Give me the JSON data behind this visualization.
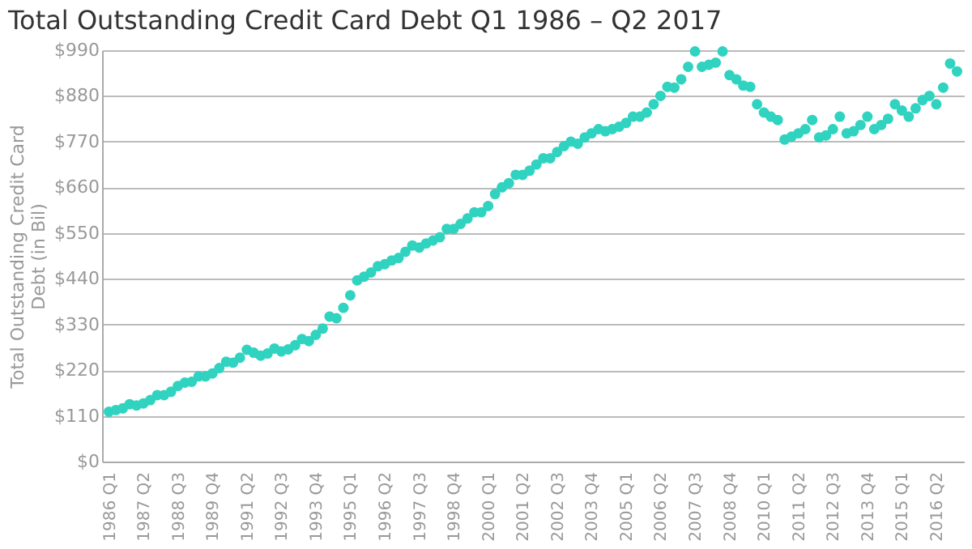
{
  "chart_data": {
    "type": "scatter",
    "title": "Total Outstanding Credit Card Debt Q1 1986 – Q2 2017",
    "ylabel": "Total Outstanding Credit Card Debt (in Bil)",
    "categories": [
      "1986 Q1",
      null,
      null,
      null,
      null,
      "1987 Q2",
      null,
      null,
      null,
      null,
      "1988 Q3",
      null,
      null,
      null,
      null,
      "1989 Q4",
      null,
      null,
      null,
      null,
      "1991 Q2",
      null,
      null,
      null,
      null,
      "1992 Q3",
      null,
      null,
      null,
      null,
      "1993 Q4",
      null,
      null,
      null,
      null,
      "1995 Q1",
      null,
      null,
      null,
      null,
      "1996 Q2",
      null,
      null,
      null,
      null,
      "1997 Q3",
      null,
      null,
      null,
      null,
      "1998 Q4",
      null,
      null,
      null,
      null,
      "2000 Q1",
      null,
      null,
      null,
      null,
      "2001 Q2",
      null,
      null,
      null,
      null,
      "2002 Q3",
      null,
      null,
      null,
      null,
      "2003 Q4",
      null,
      null,
      null,
      null,
      "2005 Q1",
      null,
      null,
      null,
      null,
      "2006 Q2",
      null,
      null,
      null,
      null,
      "2007 Q3",
      null,
      null,
      null,
      null,
      "2008 Q4",
      null,
      null,
      null,
      null,
      "2010 Q1",
      null,
      null,
      null,
      null,
      "2011 Q2",
      null,
      null,
      null,
      null,
      "2012 Q3",
      null,
      null,
      null,
      null,
      "2013 Q4",
      null,
      null,
      null,
      null,
      "2015 Q1",
      null,
      null,
      null,
      null,
      "2016 Q2",
      null,
      null,
      null
    ],
    "values": [
      120,
      124,
      128,
      138,
      135,
      140,
      148,
      160,
      160,
      168,
      182,
      190,
      192,
      205,
      205,
      212,
      225,
      240,
      238,
      250,
      269,
      262,
      255,
      260,
      272,
      265,
      270,
      280,
      295,
      290,
      305,
      320,
      349,
      345,
      370,
      400,
      436,
      445,
      455,
      470,
      475,
      484,
      490,
      505,
      520,
      515,
      525,
      532,
      540,
      560,
      560,
      572,
      585,
      600,
      600,
      615,
      644,
      660,
      670,
      690,
      690,
      700,
      715,
      730,
      730,
      745,
      759,
      770,
      765,
      780,
      790,
      800,
      795,
      800,
      806,
      815,
      830,
      830,
      840,
      860,
      880,
      902,
      900,
      920,
      950,
      987,
      950,
      955,
      960,
      987,
      930,
      920,
      905,
      902,
      860,
      840,
      830,
      822,
      775,
      782,
      790,
      800,
      822,
      780,
      785,
      800,
      830,
      790,
      795,
      810,
      830,
      800,
      810,
      825,
      860,
      845,
      830,
      850,
      870,
      880,
      860,
      900,
      958,
      939
    ],
    "color": "#2fd3c0",
    "marker": "circle",
    "grid": "y",
    "ylim": [
      0,
      990
    ],
    "yticks": [
      {
        "value": 0,
        "label": "$0"
      },
      {
        "value": 110,
        "label": "$110"
      },
      {
        "value": 220,
        "label": "$220"
      },
      {
        "value": 330,
        "label": "$330"
      },
      {
        "value": 440,
        "label": "$440"
      },
      {
        "value": 550,
        "label": "$550"
      },
      {
        "value": 660,
        "label": "$660"
      },
      {
        "value": 770,
        "label": "$770"
      },
      {
        "value": 880,
        "label": "$880"
      },
      {
        "value": 990,
        "label": "$990"
      }
    ]
  }
}
